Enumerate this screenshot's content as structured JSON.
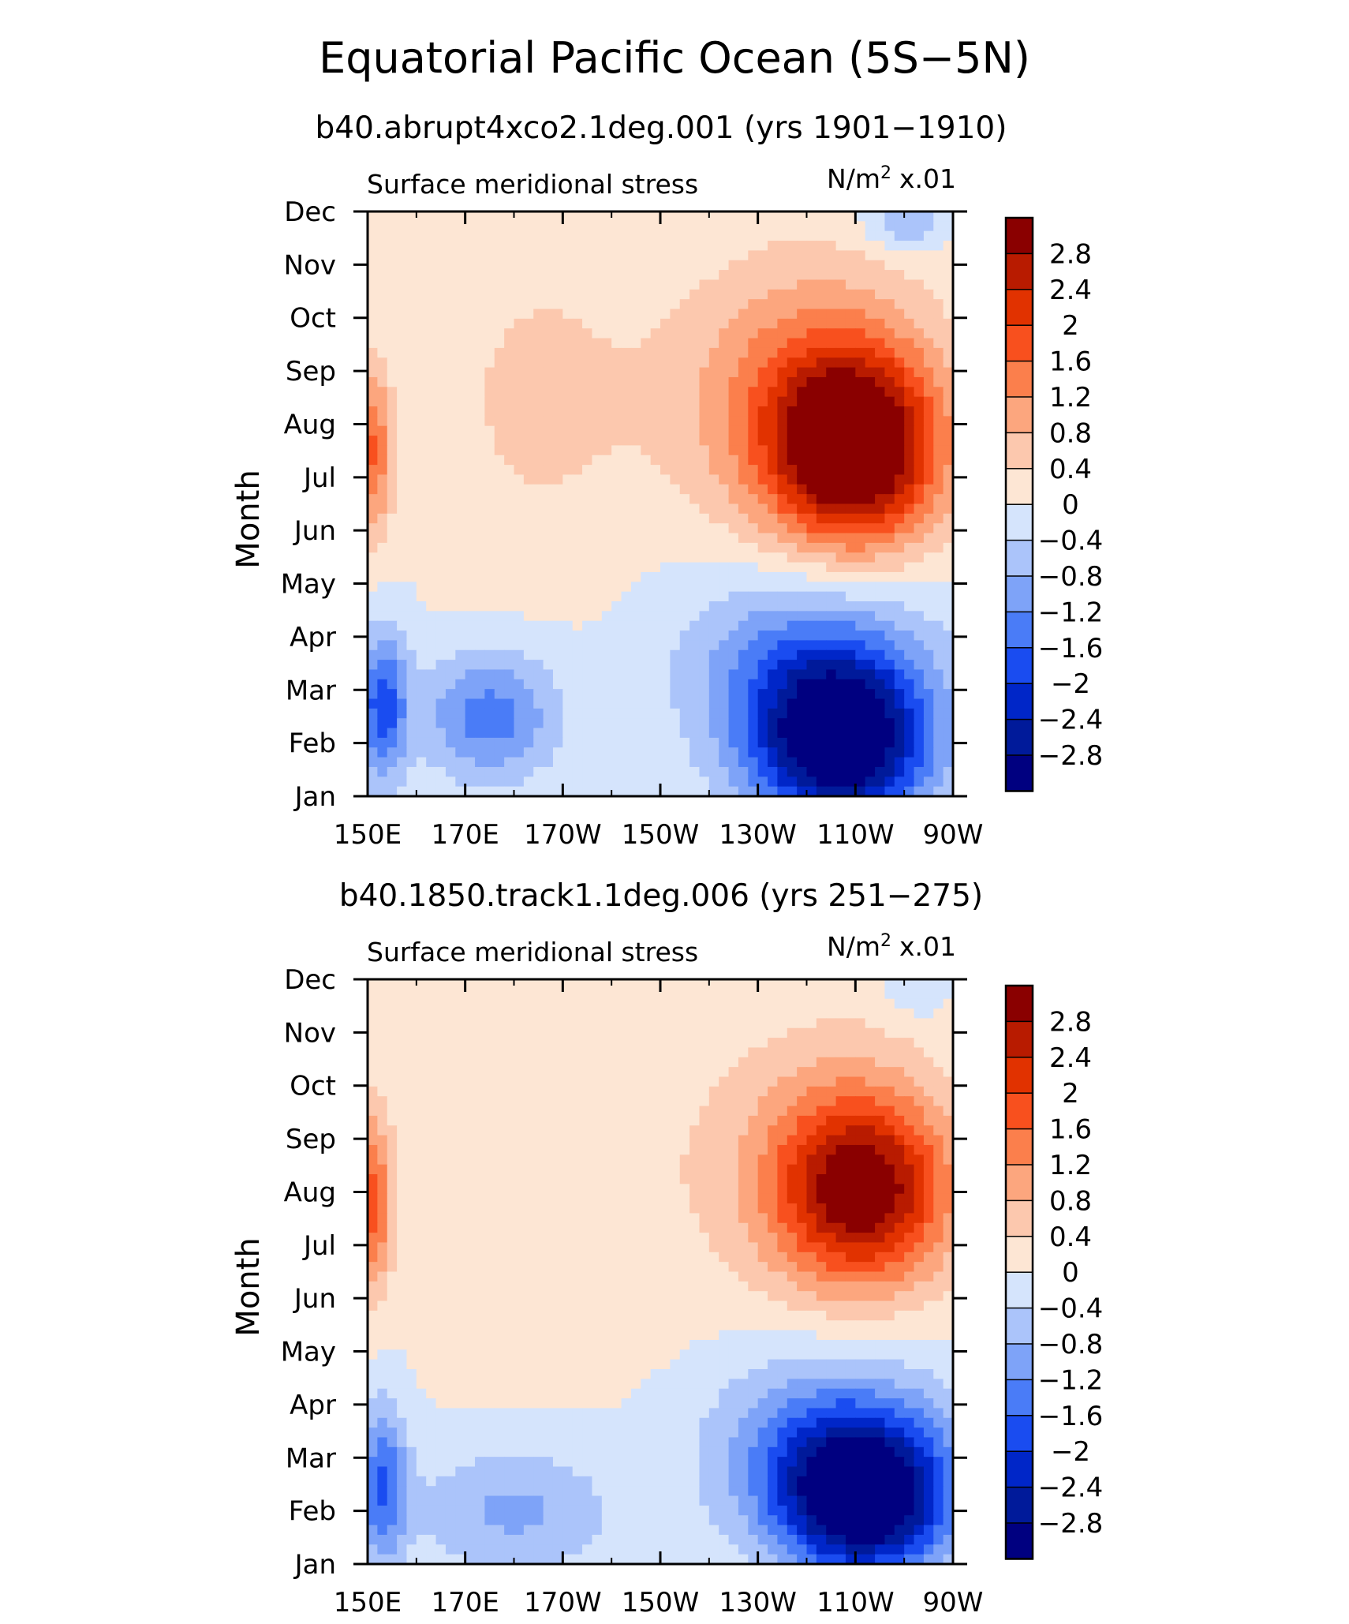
{
  "title": "Equatorial Pacific Ocean (5S−5N)",
  "palette": {
    "cold": [
      "#000080",
      "#001a9a",
      "#0026c8",
      "#1a4cf0",
      "#4a7cf7",
      "#7ea3f8",
      "#abc4fa",
      "#d5e4fc"
    ],
    "warm": [
      "#fde6d4",
      "#fcc8ae",
      "#fca67e",
      "#fb7f4c",
      "#f8501e",
      "#e13200",
      "#b81b00",
      "#8a0000"
    ]
  },
  "chart_data": [
    {
      "type": "heatmap",
      "subtitle": "b40.abrupt4xco2.1deg.001 (yrs 1901−1910)",
      "variable": "Surface meridional stress",
      "units": "N/m² x.01",
      "units_base": "N/m",
      "units_sup": "2",
      "units_scale": "x.01",
      "ylabel": "Month",
      "x_ticks": [
        "150E",
        "170E",
        "170W",
        "150W",
        "130W",
        "110W",
        "90W"
      ],
      "y_ticks": [
        "Jan",
        "Feb",
        "Mar",
        "Apr",
        "May",
        "Jun",
        "Jul",
        "Aug",
        "Sep",
        "Oct",
        "Nov",
        "Dec"
      ],
      "xlim": [
        150,
        270
      ],
      "colorbar_labels": [
        "2.8",
        "2.4",
        "2",
        "1.6",
        "1.2",
        "0.8",
        "0.4",
        "0",
        "−0.4",
        "−0.8",
        "−1.2",
        "−1.6",
        "−2",
        "−2.4",
        "−2.8"
      ],
      "colorbar_levels": [
        2.8,
        2.4,
        2.0,
        1.6,
        1.2,
        0.8,
        0.4,
        0.0,
        -0.4,
        -0.8,
        -1.2,
        -1.6,
        -2.0,
        -2.4,
        -2.8
      ],
      "features": [
        {
          "lon": 250,
          "month": 7.5,
          "value": 3.2,
          "sx": 17,
          "sy": 1.8
        },
        {
          "lon": 240,
          "month": 8.5,
          "value": 1.4,
          "sx": 26,
          "sy": 2.6
        },
        {
          "lon": 151,
          "month": 7.5,
          "value": 1.6,
          "sx": 4,
          "sy": 1.6
        },
        {
          "lon": 185,
          "month": 8.5,
          "value": 0.5,
          "sx": 22,
          "sy": 3.2
        },
        {
          "lon": 247,
          "month": 2.0,
          "value": -3.3,
          "sx": 18,
          "sy": 1.6
        },
        {
          "lon": 240,
          "month": 3.5,
          "value": -1.2,
          "sx": 26,
          "sy": 1.9
        },
        {
          "lon": 153,
          "month": 2.7,
          "value": -1.8,
          "sx": 5,
          "sy": 1.4
        },
        {
          "lon": 175,
          "month": 2.5,
          "value": -1.4,
          "sx": 14,
          "sy": 1.2
        },
        {
          "lon": 260,
          "month": 11.8,
          "value": -0.9,
          "sx": 8,
          "sy": 0.5
        }
      ]
    },
    {
      "type": "heatmap",
      "subtitle": "b40.1850.track1.1deg.006 (yrs 251−275)",
      "variable": "Surface meridional stress",
      "units": "N/m² x.01",
      "units_base": "N/m",
      "units_sup": "2",
      "units_scale": "x.01",
      "ylabel": "Month",
      "x_ticks": [
        "150E",
        "170E",
        "170W",
        "150W",
        "130W",
        "110W",
        "90W"
      ],
      "y_ticks": [
        "Jan",
        "Feb",
        "Mar",
        "Apr",
        "May",
        "Jun",
        "Jul",
        "Aug",
        "Sep",
        "Oct",
        "Nov",
        "Dec"
      ],
      "xlim": [
        150,
        270
      ],
      "colorbar_labels": [
        "2.8",
        "2.4",
        "2",
        "1.6",
        "1.2",
        "0.8",
        "0.4",
        "0",
        "−0.4",
        "−0.8",
        "−1.2",
        "−1.6",
        "−2",
        "−2.4",
        "−2.8"
      ],
      "colorbar_levels": [
        2.8,
        2.4,
        2.0,
        1.6,
        1.2,
        0.8,
        0.4,
        0.0,
        -0.4,
        -0.8,
        -1.2,
        -1.6,
        -2.0,
        -2.4,
        -2.8
      ],
      "features": [
        {
          "lon": 252,
          "month": 8.0,
          "value": 2.5,
          "sx": 17,
          "sy": 1.7
        },
        {
          "lon": 245,
          "month": 8.5,
          "value": 1.0,
          "sx": 24,
          "sy": 2.6
        },
        {
          "lon": 151,
          "month": 7.8,
          "value": 1.7,
          "sx": 4,
          "sy": 1.7
        },
        {
          "lon": 190,
          "month": 8.5,
          "value": 0.35,
          "sx": 30,
          "sy": 3.6
        },
        {
          "lon": 252,
          "month": 2.2,
          "value": -3.2,
          "sx": 17,
          "sy": 1.4
        },
        {
          "lon": 245,
          "month": 3.2,
          "value": -1.4,
          "sx": 24,
          "sy": 1.8
        },
        {
          "lon": 153,
          "month": 2.5,
          "value": -1.6,
          "sx": 5,
          "sy": 1.5
        },
        {
          "lon": 180,
          "month": 2.0,
          "value": -0.9,
          "sx": 20,
          "sy": 1.2
        },
        {
          "lon": 262,
          "month": 11.8,
          "value": -0.5,
          "sx": 6,
          "sy": 0.5
        }
      ]
    }
  ]
}
